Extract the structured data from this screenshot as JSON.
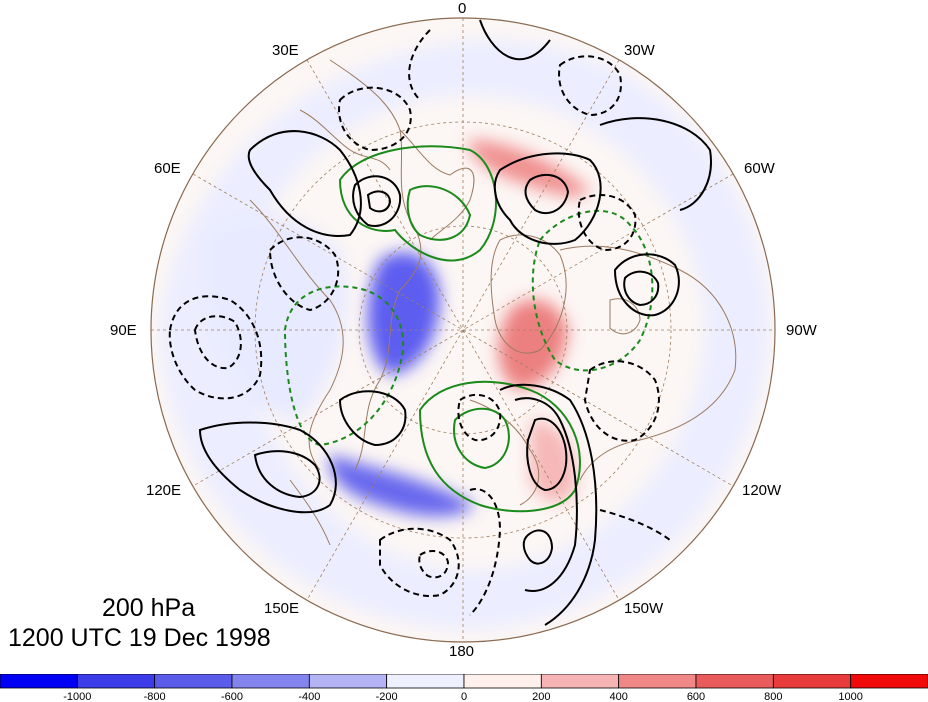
{
  "map": {
    "longitude_labels": [
      "0",
      "30W",
      "60W",
      "90W",
      "120W",
      "150W",
      "180",
      "150E",
      "120E",
      "90E",
      "60E",
      "30E"
    ],
    "pressure_level": "200 hPa",
    "valid_time": "1200 UTC 19 Dec 1998",
    "projection": "north-polar-stereographic",
    "fill_colors": {
      "strong_negative": "#3c3cf0",
      "weak_negative": "#eef0ff",
      "weak_positive": "#fdf0ee",
      "strong_positive": "#f08a8a"
    },
    "contour_colors": {
      "black": "#000000",
      "green": "#1a8a1a",
      "coastline": "#9b7b61",
      "graticule": "#a08060"
    }
  },
  "colorbar": {
    "tick_labels": [
      "-1000",
      "-800",
      "-600",
      "-400",
      "-200",
      "0",
      "200",
      "400",
      "600",
      "800",
      "1000"
    ],
    "colors": [
      "#0000f5",
      "#3c3ce8",
      "#5c5cea",
      "#8484ee",
      "#b4b4f4",
      "#eef0ff",
      "#fff0ec",
      "#f6b4b4",
      "#f08888",
      "#ea5c5c",
      "#e83c3c",
      "#f00a0a"
    ]
  }
}
